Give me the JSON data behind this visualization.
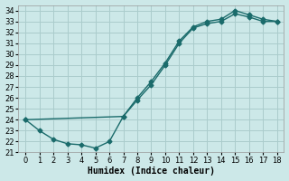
{
  "xlabel": "Humidex (Indice chaleur)",
  "bg_color": "#cce8e8",
  "line_color": "#1a6b6b",
  "grid_color": "#aacccc",
  "xlim": [
    -0.5,
    18.5
  ],
  "ylim": [
    21,
    34.5
  ],
  "yticks": [
    21,
    22,
    23,
    24,
    25,
    26,
    27,
    28,
    29,
    30,
    31,
    32,
    33,
    34
  ],
  "xticks": [
    0,
    1,
    2,
    3,
    4,
    5,
    6,
    7,
    8,
    9,
    10,
    11,
    12,
    13,
    14,
    15,
    16,
    17,
    18
  ],
  "upper_x": [
    0,
    7,
    8,
    9,
    10,
    11,
    12,
    13,
    14,
    15,
    16,
    17,
    18
  ],
  "upper_y": [
    24.0,
    24.3,
    26.0,
    27.5,
    29.2,
    31.2,
    32.5,
    33.0,
    33.2,
    34.0,
    33.6,
    33.2,
    33.0
  ],
  "lower_x": [
    0,
    1,
    2,
    3,
    4,
    5,
    6,
    7,
    8,
    9,
    10,
    11,
    12,
    13,
    14,
    15,
    16,
    17,
    18
  ],
  "lower_y": [
    24.0,
    23.0,
    22.2,
    21.8,
    21.7,
    21.4,
    22.0,
    24.3,
    25.8,
    27.2,
    29.0,
    31.0,
    32.4,
    32.8,
    33.0,
    33.7,
    33.4,
    33.0,
    33.0
  ],
  "marker": "D",
  "markersize": 2.5,
  "linewidth": 1.0,
  "tick_fontsize": 6,
  "label_fontsize": 7
}
